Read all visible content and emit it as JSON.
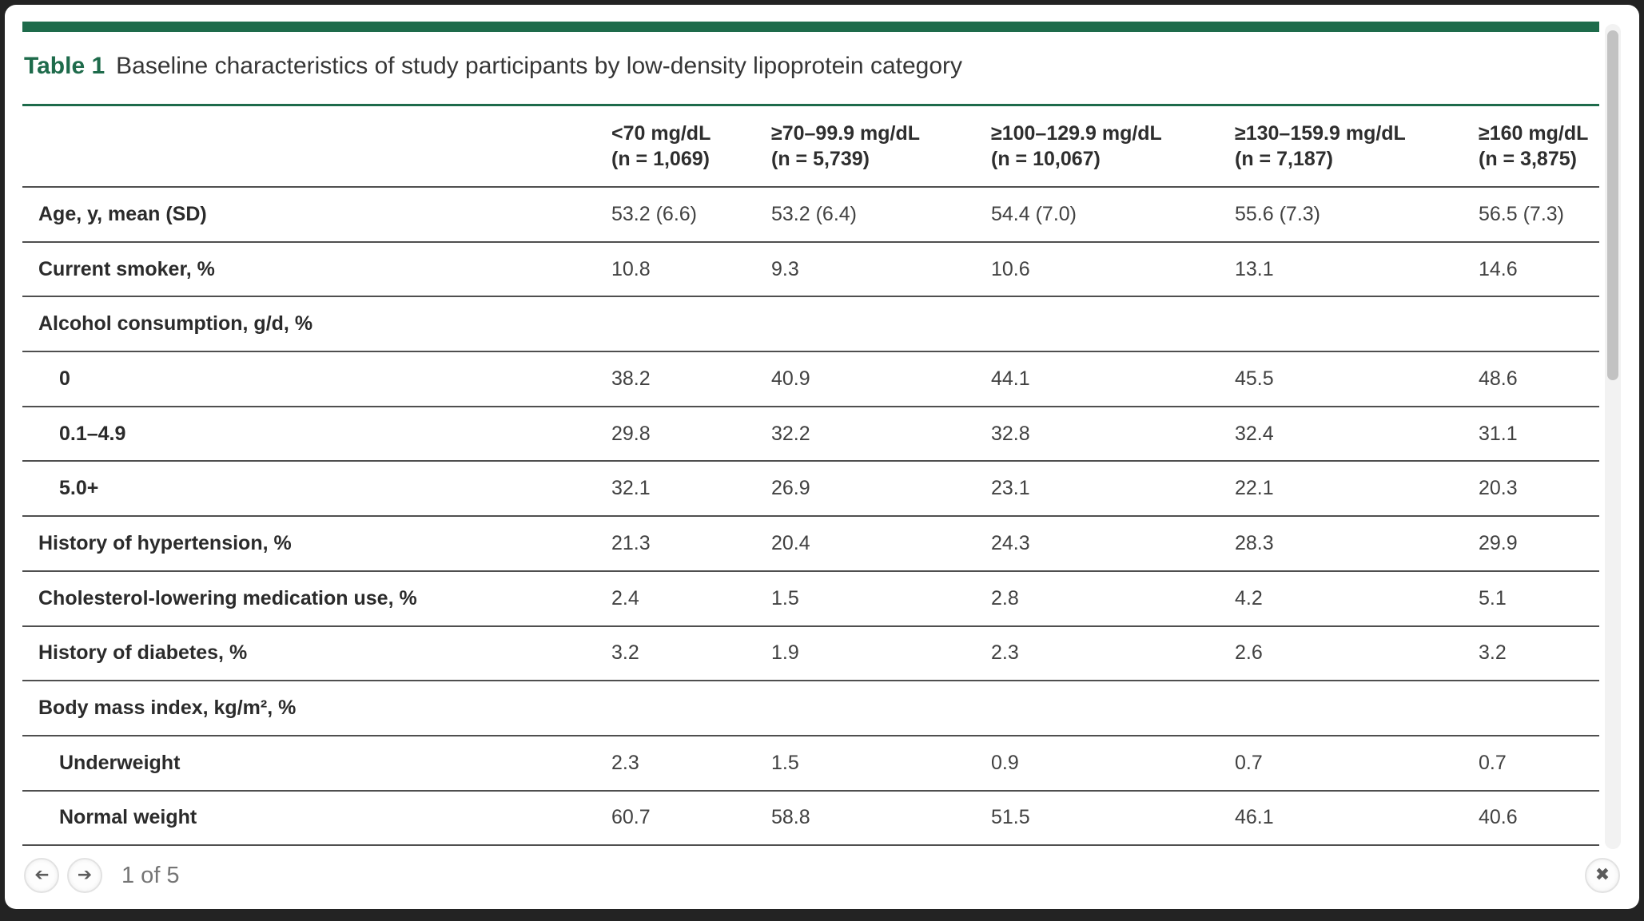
{
  "table": {
    "number_label": "Table 1",
    "caption": "Baseline characteristics of study participants by low-density lipoprotein category",
    "accent_color": "#1e6b4b",
    "columns": [
      {
        "range": "<70 mg/dL",
        "n": "(n = 1,069)"
      },
      {
        "range": "≥70–99.9 mg/dL",
        "n": "(n = 5,739)"
      },
      {
        "range": "≥100–129.9 mg/dL",
        "n": "(n = 10,067)"
      },
      {
        "range": "≥130–159.9 mg/dL",
        "n": "(n = 7,187)"
      },
      {
        "range": "≥160 mg/dL",
        "n": "(n = 3,875)"
      }
    ],
    "rows": [
      {
        "label": "Age, y, mean (SD)",
        "indent": false,
        "values": [
          "53.2 (6.6)",
          "53.2 (6.4)",
          "54.4 (7.0)",
          "55.6 (7.3)",
          "56.5 (7.3)"
        ]
      },
      {
        "label": "Current smoker, %",
        "indent": false,
        "values": [
          "10.8",
          "9.3",
          "10.6",
          "13.1",
          "14.6"
        ]
      },
      {
        "label": "Alcohol consumption, g/d, %",
        "indent": false,
        "values": [
          "",
          "",
          "",
          "",
          ""
        ]
      },
      {
        "label": "0",
        "indent": true,
        "values": [
          "38.2",
          "40.9",
          "44.1",
          "45.5",
          "48.6"
        ]
      },
      {
        "label": "0.1–4.9",
        "indent": true,
        "values": [
          "29.8",
          "32.2",
          "32.8",
          "32.4",
          "31.1"
        ]
      },
      {
        "label": "5.0+",
        "indent": true,
        "values": [
          "32.1",
          "26.9",
          "23.1",
          "22.1",
          "20.3"
        ]
      },
      {
        "label": "History of hypertension, %",
        "indent": false,
        "values": [
          "21.3",
          "20.4",
          "24.3",
          "28.3",
          "29.9"
        ]
      },
      {
        "label": "Cholesterol-lowering medication use, %",
        "indent": false,
        "values": [
          "2.4",
          "1.5",
          "2.8",
          "4.2",
          "5.1"
        ]
      },
      {
        "label": "History of diabetes, %",
        "indent": false,
        "values": [
          "3.2",
          "1.9",
          "2.3",
          "2.6",
          "3.2"
        ]
      },
      {
        "label": "Body mass index, kg/m², %",
        "indent": false,
        "values": [
          "",
          "",
          "",
          "",
          ""
        ]
      },
      {
        "label": "Underweight",
        "indent": true,
        "values": [
          "2.3",
          "1.5",
          "0.9",
          "0.7",
          "0.7"
        ]
      },
      {
        "label": "Normal weight",
        "indent": true,
        "values": [
          "60.7",
          "58.8",
          "51.5",
          "46.1",
          "40.6"
        ]
      }
    ]
  },
  "footer": {
    "page_indicator": "1 of 5"
  },
  "icons": {
    "prev": "➔",
    "next": "➔",
    "close": "✖"
  }
}
